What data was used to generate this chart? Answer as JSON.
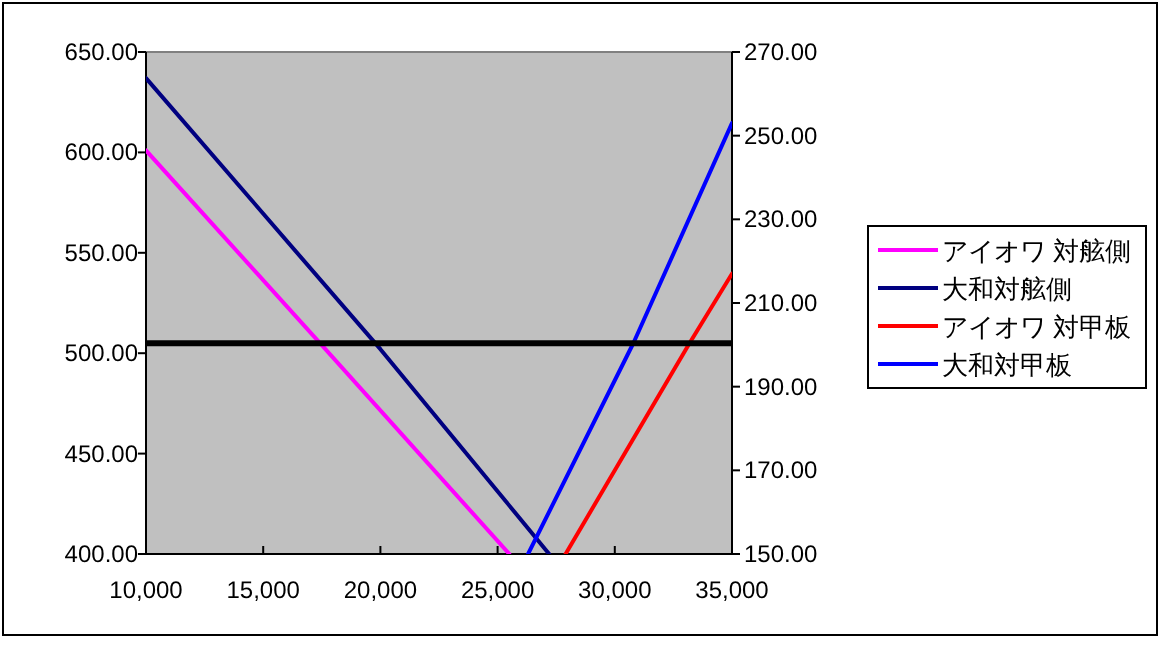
{
  "chart_data": {
    "type": "line",
    "legend": "right",
    "grid": false,
    "marker": "none",
    "line_style": "solid",
    "xlim": [
      10000,
      35000
    ],
    "xticks": [
      {
        "value": 10000,
        "label": "10,000"
      },
      {
        "value": 15000,
        "label": "15,000"
      },
      {
        "value": 20000,
        "label": "20,000"
      },
      {
        "value": 25000,
        "label": "25,000"
      },
      {
        "value": 30000,
        "label": "30,000"
      },
      {
        "value": 35000,
        "label": "35,000"
      }
    ],
    "ylim": [
      400,
      650
    ],
    "yticks": [
      {
        "value": 400,
        "label": "400.00"
      },
      {
        "value": 450,
        "label": "450.00"
      },
      {
        "value": 500,
        "label": "500.00"
      },
      {
        "value": 550,
        "label": "550.00"
      },
      {
        "value": 600,
        "label": "600.00"
      },
      {
        "value": 650,
        "label": "650.00"
      }
    ],
    "y2lim": [
      150,
      270
    ],
    "y2ticks": [
      {
        "value": 150,
        "label": "150.00"
      },
      {
        "value": 170,
        "label": "170.00"
      },
      {
        "value": 190,
        "label": "190.00"
      },
      {
        "value": 210,
        "label": "210.00"
      },
      {
        "value": 230,
        "label": "230.00"
      },
      {
        "value": 250,
        "label": "250.00"
      },
      {
        "value": 270,
        "label": "270.00"
      }
    ],
    "ref_lines": [
      {
        "axis": "y",
        "value": 505,
        "color": "#000000"
      }
    ],
    "series": [
      {
        "name": "アイオワ 対舷側",
        "color": "#ff00ff",
        "axis": "y",
        "x": [
          10000,
          17500,
          25500
        ],
        "values": [
          601,
          504,
          400
        ]
      },
      {
        "name": "大和対舷側",
        "color": "#000080",
        "axis": "y",
        "x": [
          10000,
          20000,
          27200
        ],
        "values": [
          637,
          502,
          400
        ]
      },
      {
        "name": "アイオワ 対甲板",
        "color": "#ff0000",
        "axis": "y2",
        "x": [
          27900,
          33200,
          35000
        ],
        "values": [
          150,
          200.5,
          217
        ]
      },
      {
        "name": "大和対甲板",
        "color": "#0000ff",
        "axis": "y2",
        "x": [
          26300,
          30800,
          35000
        ],
        "values": [
          150,
          200.5,
          253
        ]
      }
    ]
  }
}
